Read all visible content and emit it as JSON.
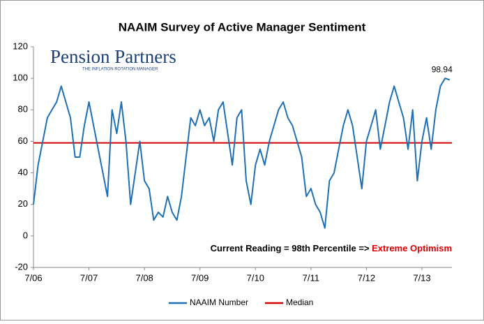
{
  "chart_data": {
    "type": "line",
    "title": "NAAIM Survey of Active Manager Sentiment",
    "logo": {
      "name": "Pension Partners",
      "tagline": "THE INFLATION ROTATION MANAGER"
    },
    "annotation": {
      "text": "Current Reading = 98th Percentile => ",
      "highlight": "Extreme Optimism",
      "highlight_color": "#e00000"
    },
    "categories": [
      "7/06",
      null,
      null,
      null,
      null,
      null,
      null,
      null,
      null,
      null,
      null,
      null,
      "7/07",
      null,
      null,
      null,
      null,
      null,
      null,
      null,
      null,
      null,
      null,
      null,
      "7/08",
      null,
      null,
      null,
      null,
      null,
      null,
      null,
      null,
      null,
      null,
      null,
      "7/09",
      null,
      null,
      null,
      null,
      null,
      null,
      null,
      null,
      null,
      null,
      null,
      "7/10",
      null,
      null,
      null,
      null,
      null,
      null,
      null,
      null,
      null,
      null,
      null,
      "7/11",
      null,
      null,
      null,
      null,
      null,
      null,
      null,
      null,
      null,
      null,
      null,
      "7/12",
      null,
      null,
      null,
      null,
      null,
      null,
      null,
      null,
      null,
      null,
      null,
      "7/13",
      null,
      null,
      null,
      null,
      null,
      null
    ],
    "series": [
      {
        "name": "NAAIM Number",
        "color": "#1f6fb5",
        "values": [
          20,
          45,
          60,
          75,
          80,
          85,
          95,
          85,
          75,
          50,
          50,
          70,
          85,
          70,
          55,
          40,
          25,
          80,
          65,
          85,
          60,
          20,
          40,
          60,
          35,
          30,
          10,
          15,
          12,
          25,
          15,
          10,
          25,
          50,
          75,
          70,
          80,
          70,
          75,
          60,
          80,
          85,
          65,
          45,
          75,
          80,
          35,
          20,
          45,
          55,
          45,
          60,
          70,
          80,
          85,
          75,
          70,
          60,
          50,
          25,
          30,
          20,
          15,
          5,
          35,
          40,
          55,
          70,
          80,
          70,
          50,
          30,
          60,
          70,
          80,
          55,
          70,
          85,
          95,
          85,
          75,
          55,
          80,
          35,
          60,
          75,
          55,
          80,
          95,
          100,
          98.94
        ]
      }
    ],
    "median": {
      "name": "Median",
      "value": 59,
      "color": "#d00000"
    },
    "ylim": [
      -20,
      120
    ],
    "yticks": [
      -20,
      0,
      20,
      40,
      60,
      80,
      100,
      120
    ]
  }
}
